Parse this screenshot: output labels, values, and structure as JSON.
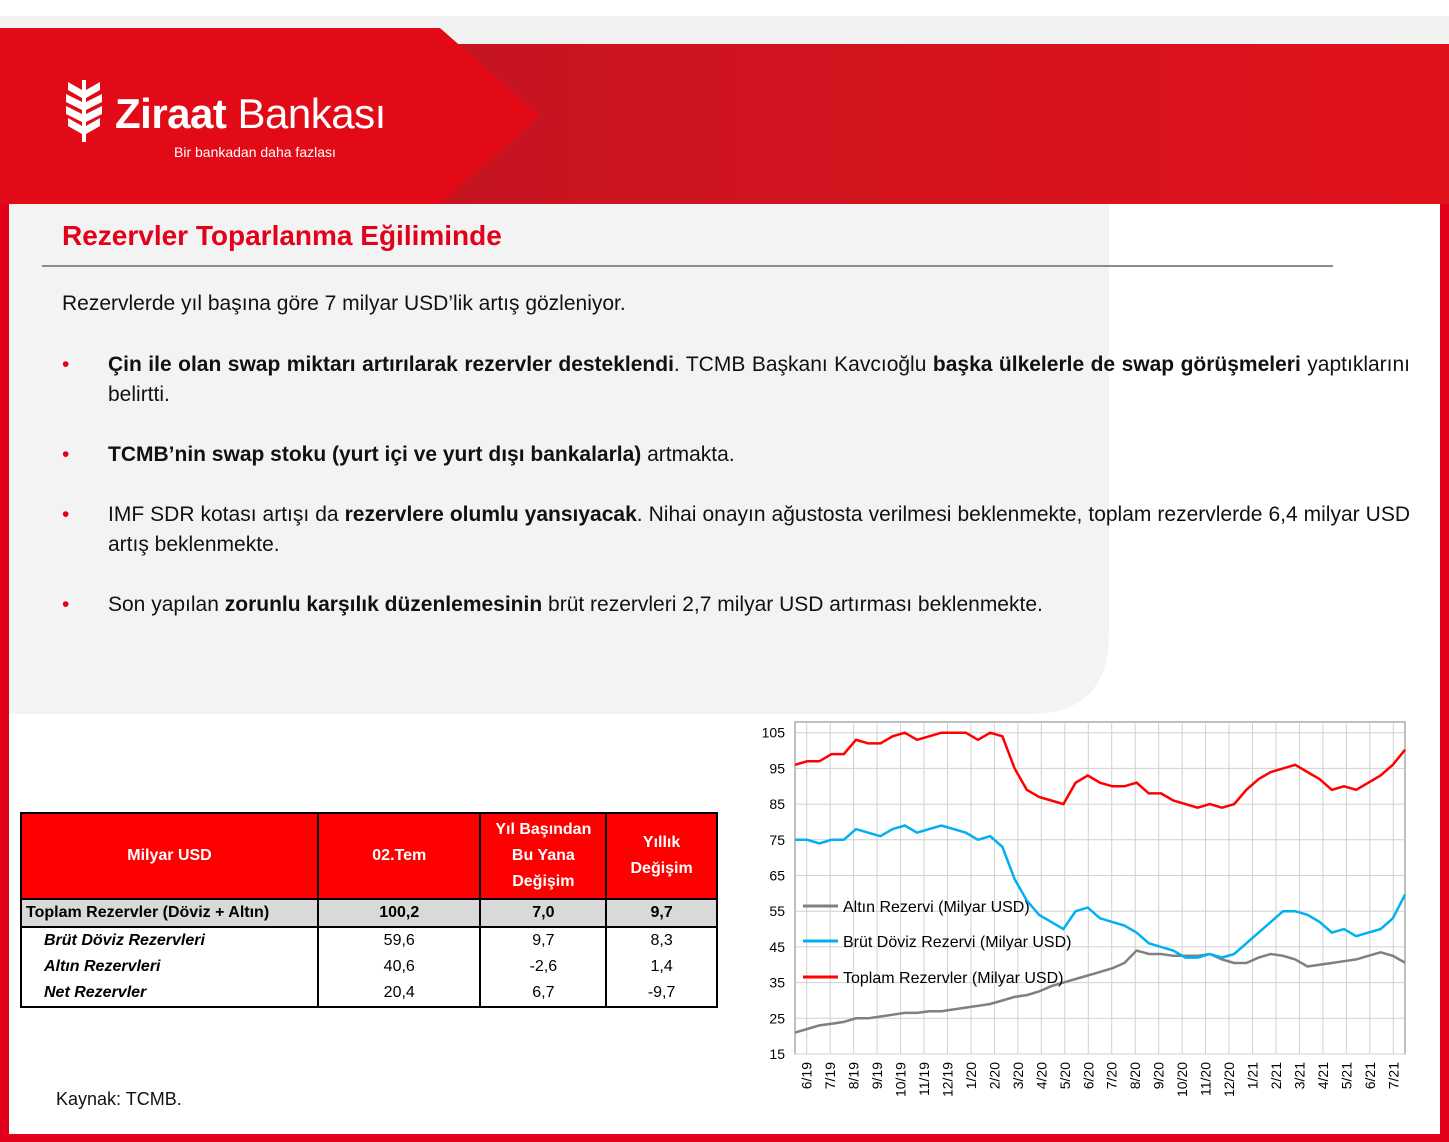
{
  "header": {
    "brand_bold": "Ziraat",
    "brand_regular": " Bankası",
    "tagline": "Bir bankadan daha fazlası"
  },
  "title": "Rezervler Toparlanma Eğiliminde",
  "intro": "Rezervlerde yıl başına göre 7 milyar USD’lik artış gözleniyor.",
  "bullet_marker": "•",
  "bullets": [
    [
      "Çin ile olan swap miktarı artırılarak rezervler desteklendi",
      ". TCMB Başkanı Kavcıoğlu ",
      "başka ülkelerle de swap görüşmeleri",
      " yaptıklarını belirtti."
    ],
    [
      "TCMB’nin swap stoku (yurt içi ve yurt dışı bankalarla)",
      " artmakta."
    ],
    [
      "IMF SDR kotası artışı da ",
      "rezervlere olumlu yansıyacak",
      ". Nihai onayın ağustosta verilmesi beklenmekte, toplam rezervlerde 6,4 milyar USD artış beklenmekte."
    ],
    [
      "Son yapılan ",
      "zorunlu karşılık düzenlemesinin",
      " brüt rezervleri 2,7 milyar USD artırması beklenmekte."
    ]
  ],
  "table": {
    "headers": [
      "Milyar USD",
      "02.Tem",
      [
        "Yıl Başından",
        "Bu Yana",
        "Değişim"
      ],
      [
        "Yıllık",
        "Değişim"
      ]
    ],
    "rows": [
      [
        "Toplam Rezervler (Döviz + Altın)",
        "100,2",
        "7,0",
        "9,7"
      ],
      [
        "Brüt Döviz Rezervleri",
        "59,6",
        "9,7",
        "8,3"
      ],
      [
        "Altın Rezervleri",
        "40,6",
        "-2,6",
        "1,4"
      ],
      [
        "Net Rezervler",
        "20,4",
        "6,7",
        "-9,7"
      ]
    ]
  },
  "source": "Kaynak: TCMB.",
  "colors": {
    "brand_red": "#e2001a",
    "table_header": "#ff0000",
    "gold_series": "#808080",
    "fx_series": "#00b0f0",
    "total_series": "#ff0000"
  },
  "chart_data": {
    "type": "line",
    "title": "",
    "xlabel": "",
    "ylabel": "",
    "ylim": [
      15,
      108
    ],
    "yticks": [
      "15",
      "25",
      "35",
      "45",
      "55",
      "65",
      "75",
      "85",
      "95",
      "105"
    ],
    "x_tick_labels": [
      "6/19",
      "7/19",
      "8/19",
      "9/19",
      "10/19",
      "11/19",
      "12/19",
      "1/20",
      "2/20",
      "3/20",
      "4/20",
      "5/20",
      "6/20",
      "7/20",
      "8/20",
      "9/20",
      "10/20",
      "11/20",
      "12/20",
      "1/21",
      "2/21",
      "3/21",
      "4/21",
      "5/21",
      "6/21",
      "7/21"
    ],
    "grid": true,
    "legend_position": "lower-left",
    "series": [
      {
        "name": "Altın Rezervi (Milyar USD)",
        "color": "#808080",
        "x": [
          "6/19",
          "6/19",
          "7/19",
          "7/19",
          "8/19",
          "8/19",
          "9/19",
          "9/19",
          "10/19",
          "10/19",
          "11/19",
          "11/19",
          "12/19",
          "12/19",
          "1/20",
          "1/20",
          "2/20",
          "2/20",
          "3/20",
          "3/20",
          "4/20",
          "4/20",
          "5/20",
          "5/20",
          "6/20",
          "6/20",
          "7/20",
          "7/20",
          "8/20",
          "8/20",
          "9/20",
          "9/20",
          "10/20",
          "10/20",
          "11/20",
          "11/20",
          "12/20",
          "12/20",
          "1/21",
          "1/21",
          "2/21",
          "2/21",
          "3/21",
          "3/21",
          "4/21",
          "4/21",
          "5/21",
          "5/21",
          "6/21",
          "6/21",
          "7/21"
        ],
        "values": [
          21,
          22,
          23,
          23.5,
          24,
          25,
          25,
          25.5,
          26,
          26.5,
          26.5,
          27,
          27,
          27.5,
          28,
          28.5,
          29,
          30,
          31,
          31.5,
          32.5,
          34,
          35,
          36,
          37,
          38,
          39,
          40.5,
          44,
          43,
          43,
          42.5,
          42.5,
          42.5,
          43,
          41.5,
          40.5,
          40.5,
          42,
          43,
          42.5,
          41.5,
          39.5,
          40,
          40.5,
          41,
          41.5,
          42.5,
          43.5,
          42.5,
          40.6
        ]
      },
      {
        "name": "Brüt Döviz Rezervi (Milyar USD)",
        "color": "#00b0f0",
        "x": [
          "6/19",
          "6/19",
          "7/19",
          "7/19",
          "8/19",
          "8/19",
          "9/19",
          "9/19",
          "10/19",
          "10/19",
          "11/19",
          "11/19",
          "12/19",
          "12/19",
          "1/20",
          "1/20",
          "2/20",
          "2/20",
          "3/20",
          "3/20",
          "4/20",
          "4/20",
          "5/20",
          "5/20",
          "6/20",
          "6/20",
          "7/20",
          "7/20",
          "8/20",
          "8/20",
          "9/20",
          "9/20",
          "10/20",
          "10/20",
          "11/20",
          "11/20",
          "12/20",
          "12/20",
          "1/21",
          "1/21",
          "2/21",
          "2/21",
          "3/21",
          "3/21",
          "4/21",
          "4/21",
          "5/21",
          "5/21",
          "6/21",
          "6/21",
          "7/21"
        ],
        "values": [
          75,
          75,
          74,
          75,
          75,
          78,
          77,
          76,
          78,
          79,
          77,
          78,
          79,
          78,
          77,
          75,
          76,
          73,
          64,
          58,
          54,
          52,
          50,
          55,
          56,
          53,
          52,
          51,
          49,
          46,
          45,
          44,
          42,
          42,
          43,
          42,
          43,
          46,
          49,
          52,
          55,
          55,
          54,
          52,
          49,
          50,
          48,
          49,
          50,
          53,
          59.6
        ]
      },
      {
        "name": "Toplam Rezervler (Milyar USD)",
        "color": "#ff0000",
        "x": [
          "6/19",
          "6/19",
          "7/19",
          "7/19",
          "8/19",
          "8/19",
          "9/19",
          "9/19",
          "10/19",
          "10/19",
          "11/19",
          "11/19",
          "12/19",
          "12/19",
          "1/20",
          "1/20",
          "2/20",
          "2/20",
          "3/20",
          "3/20",
          "4/20",
          "4/20",
          "5/20",
          "5/20",
          "6/20",
          "6/20",
          "7/20",
          "7/20",
          "8/20",
          "8/20",
          "9/20",
          "9/20",
          "10/20",
          "10/20",
          "11/20",
          "11/20",
          "12/20",
          "12/20",
          "1/21",
          "1/21",
          "2/21",
          "2/21",
          "3/21",
          "3/21",
          "4/21",
          "4/21",
          "5/21",
          "5/21",
          "6/21",
          "6/21",
          "7/21"
        ],
        "values": [
          96,
          97,
          97,
          99,
          99,
          103,
          102,
          102,
          104,
          105,
          103,
          104,
          105,
          105,
          105,
          103,
          105,
          104,
          95,
          89,
          87,
          86,
          85,
          91,
          93,
          91,
          90,
          90,
          91,
          88,
          88,
          86,
          85,
          84,
          85,
          84,
          85,
          89,
          92,
          94,
          95,
          96,
          94,
          92,
          89,
          90,
          89,
          91,
          93,
          96,
          100.2
        ]
      }
    ]
  }
}
